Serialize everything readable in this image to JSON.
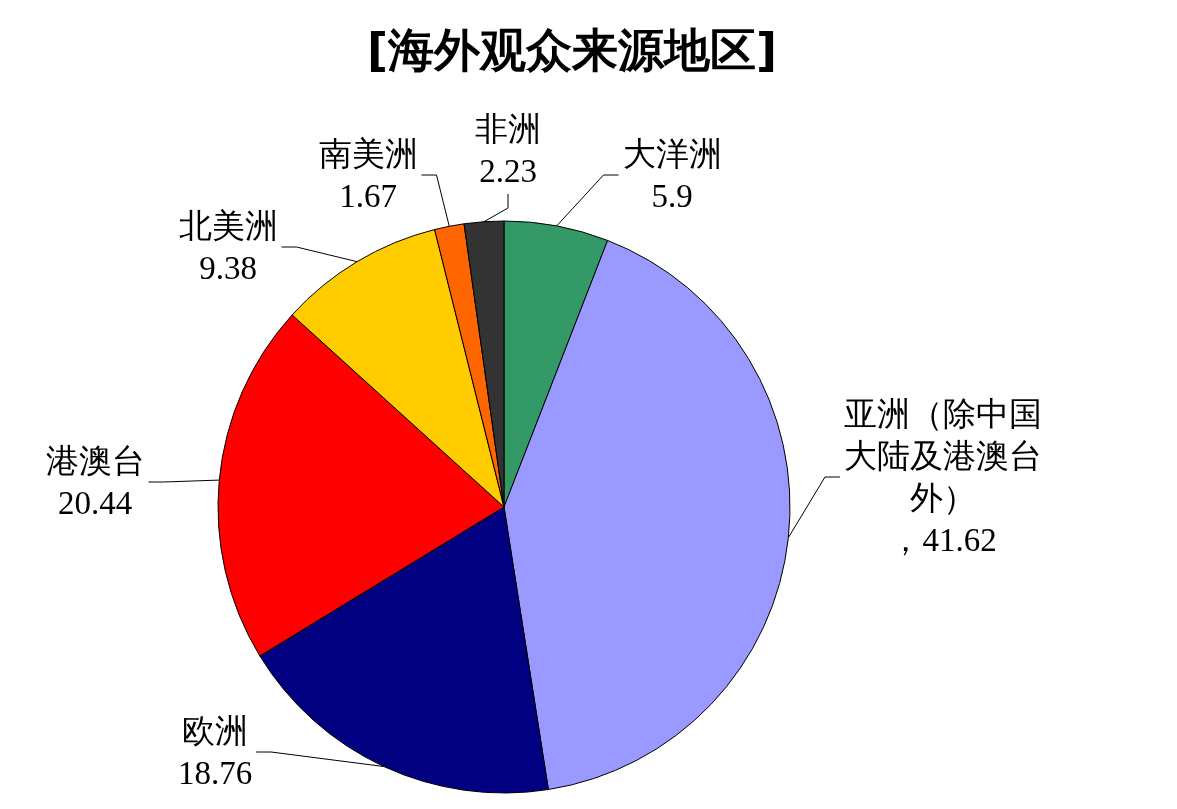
{
  "chart_data": {
    "type": "pie",
    "title": "[海外观众来源地区]",
    "categories": [
      "大洋洲",
      "亚洲（除中国大陆及港澳台外）",
      "欧洲",
      "港澳台",
      "北美洲",
      "南美洲",
      "非洲"
    ],
    "values": [
      5.9,
      41.62,
      18.76,
      20.44,
      9.38,
      1.67,
      2.23
    ],
    "value_labels": [
      "5.9",
      "，41.62",
      "18.76",
      "20.44",
      "9.38",
      "1.67",
      "2.23"
    ],
    "colors": [
      "#339966",
      "#9999ff",
      "#000080",
      "#ff0000",
      "#ffcc00",
      "#ff6600",
      "#333333"
    ]
  }
}
